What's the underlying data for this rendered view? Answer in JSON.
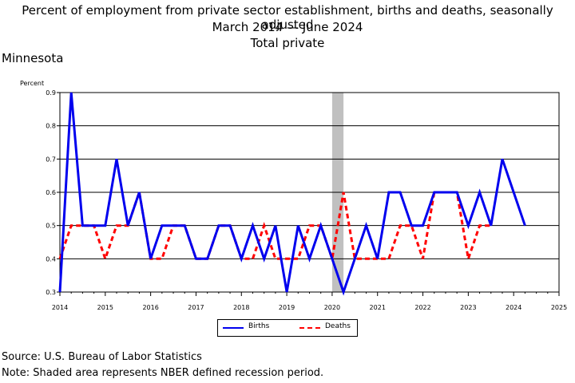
{
  "title_line1": "Percent of employment from private sector establishment, births and deaths, seasonally adjusted",
  "title_line2": "March 2014 — June 2024",
  "title_line3": "Total private",
  "region": "Minnesota",
  "source": "Source: U.S. Bureau of Labor Statistics",
  "note": "Note: Shaded area represents NBER defined recession period.",
  "colors": {
    "births": "#0000ee",
    "deaths": "#ff0000",
    "recession": "#c0c0c0",
    "grid": "#000000"
  },
  "chart_data": {
    "type": "line",
    "ylabel": "Percent",
    "ylim": [
      0.3,
      0.9
    ],
    "yticks": [
      "0.3",
      "0.4",
      "0.5",
      "0.6",
      "0.7",
      "0.8",
      "0.9"
    ],
    "xlim": [
      2014,
      2025
    ],
    "xticks": [
      "2014",
      "2015",
      "2016",
      "2017",
      "2018",
      "2019",
      "2020",
      "2021",
      "2022",
      "2023",
      "2024",
      "2025"
    ],
    "grid": "horizontal",
    "legend_position": "bottom-center",
    "recession": {
      "start": 2020.0,
      "end": 2020.25
    },
    "x": [
      "2014 Q1",
      "2014 Q2",
      "2014 Q3",
      "2014 Q4",
      "2015 Q1",
      "2015 Q2",
      "2015 Q3",
      "2015 Q4",
      "2016 Q1",
      "2016 Q2",
      "2016 Q3",
      "2016 Q4",
      "2017 Q1",
      "2017 Q2",
      "2017 Q3",
      "2017 Q4",
      "2018 Q1",
      "2018 Q2",
      "2018 Q3",
      "2018 Q4",
      "2019 Q1",
      "2019 Q2",
      "2019 Q3",
      "2019 Q4",
      "2020 Q1",
      "2020 Q2",
      "2020 Q3",
      "2020 Q4",
      "2021 Q1",
      "2021 Q2",
      "2021 Q3",
      "2021 Q4",
      "2022 Q1",
      "2022 Q2",
      "2022 Q3",
      "2022 Q4",
      "2023 Q1",
      "2023 Q2",
      "2023 Q3",
      "2023 Q4",
      "2024 Q1",
      "2024 Q2"
    ],
    "series": [
      {
        "name": "Births",
        "values": [
          0.3,
          0.9,
          0.5,
          0.5,
          0.5,
          0.7,
          0.5,
          0.6,
          0.4,
          0.5,
          0.5,
          0.5,
          0.4,
          0.4,
          0.5,
          0.5,
          0.4,
          0.5,
          0.4,
          0.5,
          0.3,
          0.5,
          0.4,
          0.5,
          0.4,
          0.3,
          0.4,
          0.5,
          0.4,
          0.6,
          0.6,
          0.5,
          0.5,
          0.6,
          0.6,
          0.6,
          0.5,
          0.6,
          0.5,
          0.7,
          0.6,
          0.5
        ]
      },
      {
        "name": "Deaths",
        "values": [
          0.4,
          0.5,
          0.5,
          0.5,
          0.4,
          0.5,
          0.5,
          0.6,
          0.4,
          0.4,
          0.5,
          0.5,
          0.4,
          0.4,
          0.5,
          0.5,
          0.4,
          0.4,
          0.5,
          0.4,
          0.4,
          0.4,
          0.5,
          0.5,
          0.4,
          0.6,
          0.4,
          0.4,
          0.4,
          0.4,
          0.5,
          0.5,
          0.4,
          0.6,
          0.6,
          0.6,
          0.4,
          0.5,
          0.5,
          null,
          null,
          null
        ]
      }
    ]
  }
}
